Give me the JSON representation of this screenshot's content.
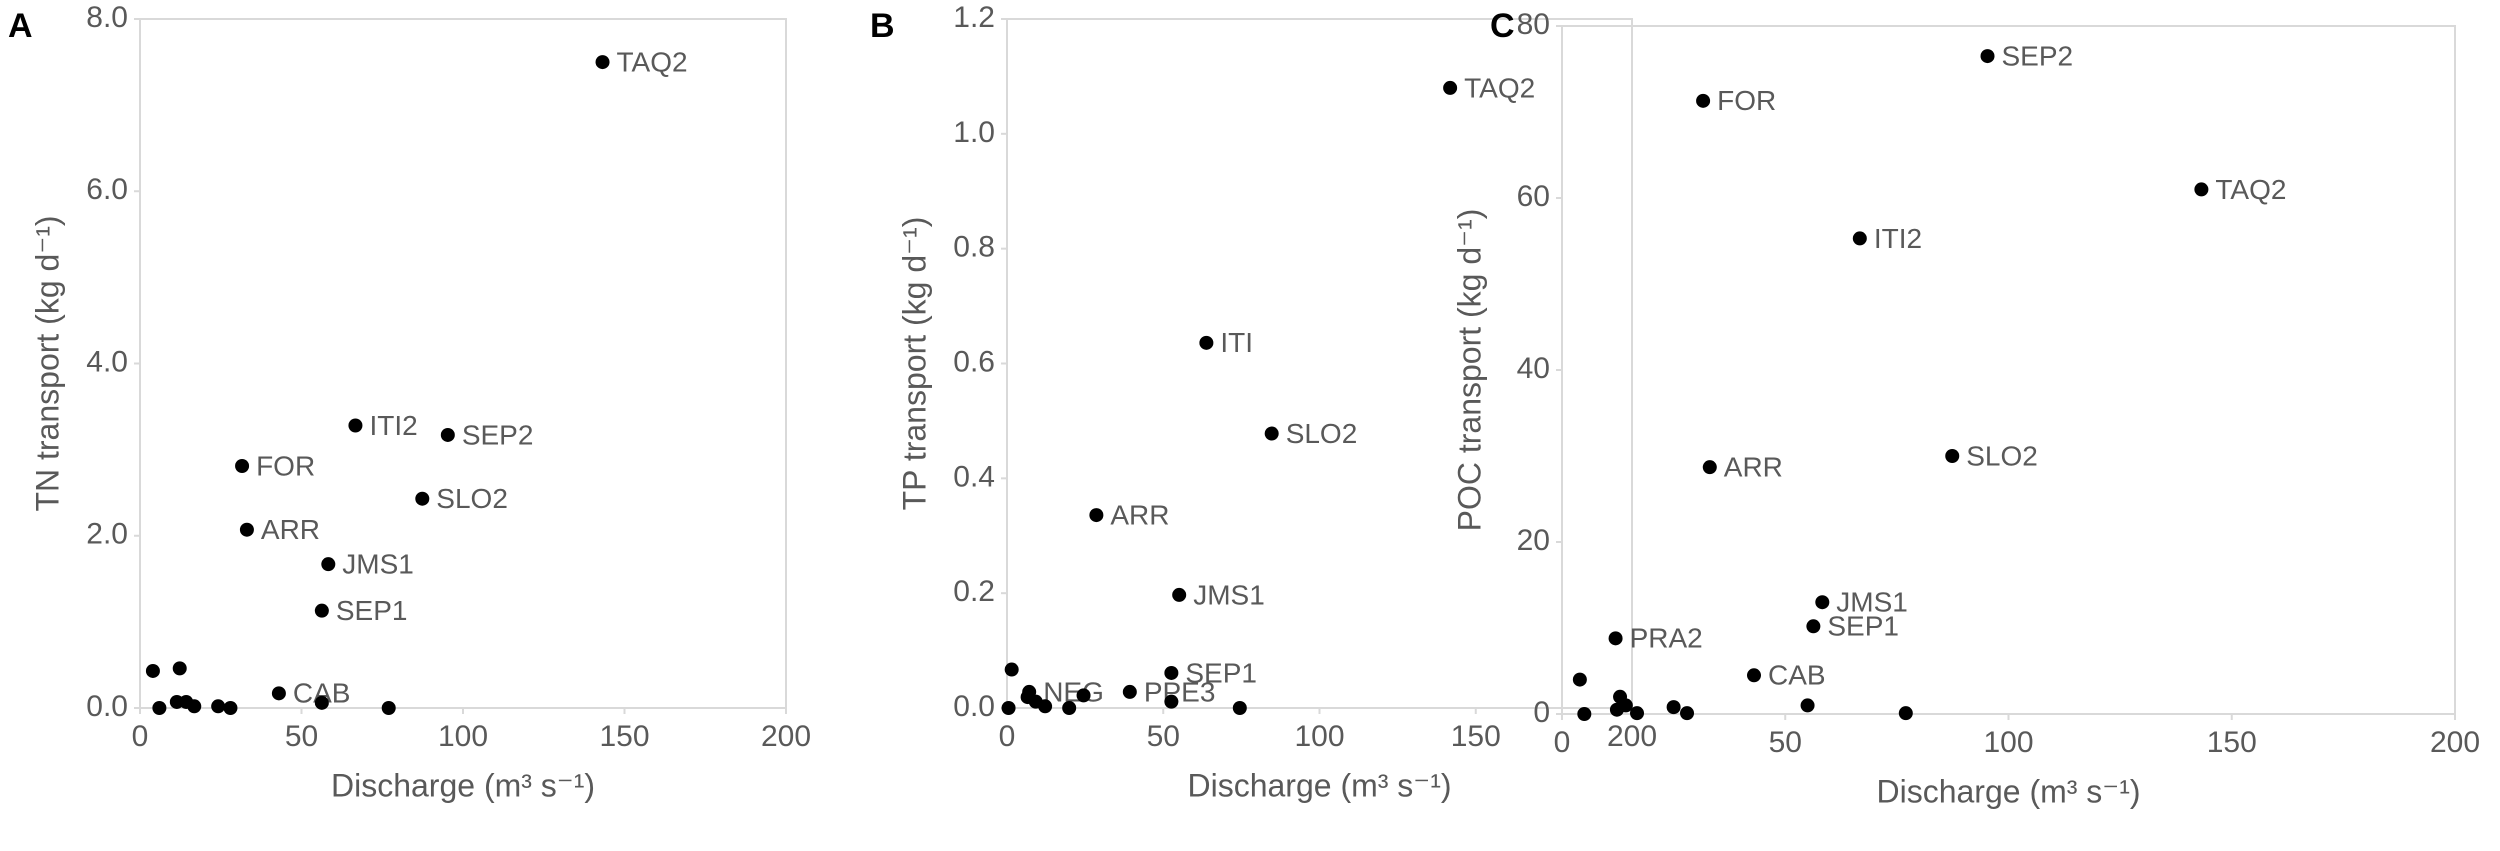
{
  "chart_data": [
    {
      "type": "scatter",
      "panel_label": "A",
      "xlabel": "Discharge (m³ s⁻¹)",
      "ylabel": "TN transport (kg d⁻¹)",
      "color": "#000000",
      "x": [
        143.2,
        66.7,
        95.3,
        31.6,
        87.4,
        33.1,
        58.3,
        56.3,
        43,
        4,
        12.3,
        6,
        11.4,
        14.3,
        16.8,
        24.2,
        28,
        56.3,
        77
      ],
      "values": [
        7.5,
        3.28,
        3.17,
        2.81,
        2.43,
        2.07,
        1.67,
        1.13,
        0.17,
        0.43,
        0.46,
        0,
        0.07,
        0.07,
        0.02,
        0.02,
        0,
        0.06,
        0
      ],
      "point_labels": [
        "TAQ2",
        "ITI2",
        "SEP2",
        "FOR",
        "SLO2",
        "ARR",
        "JMS1",
        "SEP1",
        "CAB",
        null,
        null,
        null,
        null,
        null,
        null,
        null,
        null,
        null,
        null
      ],
      "xlim": [
        0,
        200
      ],
      "xticks": [
        0,
        50,
        100,
        150,
        200
      ],
      "ylim": [
        0,
        8
      ],
      "yticks": [
        {
          "value": 0,
          "label": "0.0"
        },
        {
          "value": 2,
          "label": "2.0"
        },
        {
          "value": 4,
          "label": "4.0"
        },
        {
          "value": 6,
          "label": "6.0"
        },
        {
          "value": 8,
          "label": "8.0"
        }
      ]
    },
    {
      "type": "scatter",
      "panel_label": "B",
      "xlabel": "Discharge (m³ s⁻¹)",
      "ylabel": "TP transport (kg d⁻¹)",
      "color": "#000000",
      "x": [
        141.8,
        63.8,
        84.7,
        28.6,
        55.1,
        52.6,
        7.1,
        39.3,
        1.5,
        0.5,
        6.6,
        9.2,
        12.2,
        19.9,
        24.5,
        52.6,
        74.5
      ],
      "values": [
        1.08,
        0.636,
        0.478,
        0.336,
        0.197,
        0.061,
        0.028,
        0.028,
        0.067,
        0,
        0.019,
        0.011,
        0.003,
        0,
        0.022,
        0.011,
        0
      ],
      "point_labels": [
        "TAQ2",
        "ITI",
        "SLO2",
        "ARR",
        "JMS1",
        "SEP1",
        "NEG",
        "PPE3",
        null,
        null,
        null,
        null,
        null,
        null,
        null,
        null,
        null
      ],
      "xlim": [
        0,
        200
      ],
      "xticks": [
        0,
        50,
        100,
        150,
        200
      ],
      "ylim": [
        0,
        1.2
      ],
      "yticks": [
        {
          "value": 0,
          "label": "0.0"
        },
        {
          "value": 0.2,
          "label": "0.2"
        },
        {
          "value": 0.4,
          "label": "0.4"
        },
        {
          "value": 0.6,
          "label": "0.6"
        },
        {
          "value": 0.8,
          "label": "0.8"
        },
        {
          "value": 1,
          "label": "1.0"
        },
        {
          "value": 1.2,
          "label": "1.2"
        }
      ]
    },
    {
      "type": "scatter",
      "panel_label": "C",
      "xlabel": "Discharge (m³ s⁻¹)",
      "ylabel": "POC transport (kg d⁻¹)",
      "color": "#000000",
      "x": [
        95.3,
        31.6,
        143.2,
        66.7,
        87.4,
        33.1,
        58.3,
        56.3,
        12,
        43,
        4,
        5,
        12.3,
        13,
        14.3,
        16.8,
        25,
        28,
        55,
        77
      ],
      "values": [
        76.5,
        71.3,
        61,
        55.3,
        30,
        28.7,
        13,
        10.2,
        8.8,
        4.5,
        4,
        0,
        0.5,
        2,
        1,
        0.1,
        0.8,
        0.1,
        1,
        0.1
      ],
      "point_labels": [
        "SEP2",
        "FOR",
        "TAQ2",
        "ITI2",
        "SLO2",
        "ARR",
        "JMS1",
        "SEP1",
        "PRA2",
        "CAB",
        null,
        null,
        null,
        null,
        null,
        null,
        null,
        null,
        null,
        null
      ],
      "xlim": [
        0,
        200
      ],
      "xticks": [
        0,
        50,
        100,
        150,
        200
      ],
      "ylim": [
        0,
        80
      ],
      "yticks": [
        0,
        20,
        40,
        60,
        80
      ]
    }
  ]
}
